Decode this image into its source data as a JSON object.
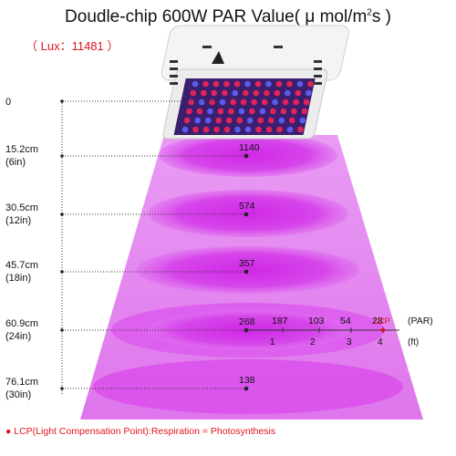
{
  "header": {
    "title_main": "Doudle-chip 600W PAR Value( μ mol/m",
    "title_sup": "2",
    "title_tail": "s )",
    "lux": "（ Lux：11481 ）"
  },
  "rows": [
    {
      "height": "0",
      "inches": "",
      "par": ""
    },
    {
      "height": "15.2cm",
      "inches": "(6in)",
      "par": "1140"
    },
    {
      "height": "30.5cm",
      "inches": "(12in)",
      "par": "574"
    },
    {
      "height": "45.7cm",
      "inches": "(18in)",
      "par": "357"
    },
    {
      "height": "60.9cm",
      "inches": "(24in)",
      "par": "268"
    },
    {
      "height": "76.1cm",
      "inches": "(30in)",
      "par": "138"
    }
  ],
  "spread": {
    "par_values": [
      "187",
      "103",
      "54",
      "28"
    ],
    "par_unit": "(PAR)",
    "ft_ticks": [
      "1",
      "2",
      "3",
      "4"
    ],
    "ft_unit": "(ft)",
    "lcp_label": "LCP"
  },
  "footnote": "● LCP(Light Compensation Point):Respiration = Photosynthesis",
  "colors": {
    "beam": "#e066f0",
    "ellipse": "#d63cec",
    "accent_red": "#e0141c",
    "led_red": "#e0245a",
    "led_blue": "#5a5cf0"
  }
}
